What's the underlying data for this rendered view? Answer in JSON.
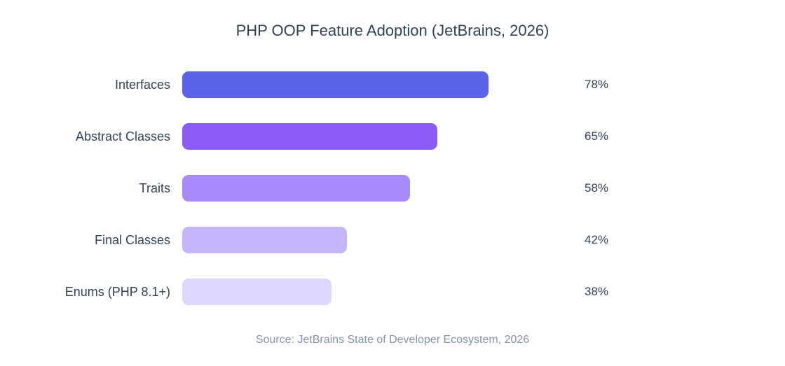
{
  "chart_data": {
    "type": "bar",
    "orientation": "horizontal",
    "title": "PHP OOP Feature Adoption (JetBrains, 2026)",
    "categories": [
      "Interfaces",
      "Abstract Classes",
      "Traits",
      "Final Classes",
      "Enums (PHP 8.1+)"
    ],
    "values": [
      78,
      65,
      58,
      42,
      38
    ],
    "value_labels": [
      "78%",
      "65%",
      "58%",
      "42%",
      "38%"
    ],
    "xlim": [
      0,
      100
    ],
    "bar_colors": [
      "#5b63e8",
      "#8b5cf6",
      "#a78bfa",
      "#c4b5fd",
      "#ddd6fe"
    ],
    "grid": false,
    "legend": false,
    "source": "Source: JetBrains State of Developer Ecosystem, 2026"
  },
  "colors": {
    "background": "#ffffff",
    "title_text": "#334155",
    "label_text": "#334155",
    "value_text": "#334155",
    "source_text": "#8492a6"
  }
}
